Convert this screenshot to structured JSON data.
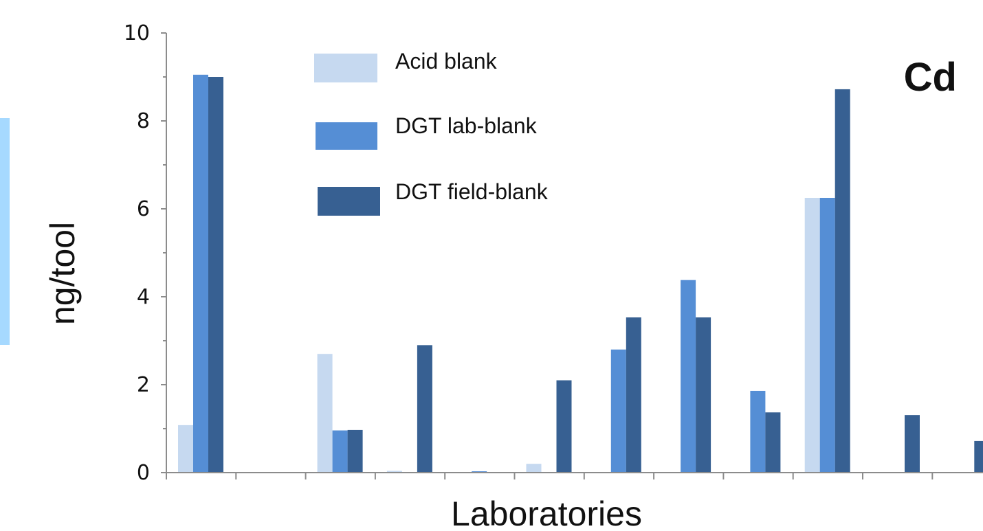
{
  "chart_data": {
    "type": "bar",
    "title": "Cd",
    "xlabel": "Laboratories",
    "ylabel": "ng/tool",
    "ylim": [
      0,
      10
    ],
    "yticks": [
      "0",
      "2",
      "4",
      "6",
      "8",
      "10"
    ],
    "grid": false,
    "legend_position": "top-center",
    "categories": [
      "",
      "",
      "",
      "",
      "",
      "",
      "",
      "",
      "",
      "",
      "",
      ""
    ],
    "series": [
      {
        "name": "Acid blank",
        "color": "#c6d9f0",
        "values": [
          1.08,
          null,
          2.7,
          0.04,
          null,
          0.2,
          null,
          null,
          null,
          6.25,
          null,
          null
        ]
      },
      {
        "name": "DGT lab-blank",
        "color": "#558ed5",
        "values": [
          9.05,
          null,
          0.96,
          null,
          0.03,
          null,
          2.8,
          4.38,
          1.86,
          6.25,
          null,
          null
        ]
      },
      {
        "name": "DGT field-blank",
        "color": "#376092",
        "values": [
          9.0,
          null,
          0.97,
          2.9,
          null,
          2.1,
          3.53,
          3.53,
          1.37,
          8.72,
          1.31,
          0.72
        ]
      }
    ]
  }
}
